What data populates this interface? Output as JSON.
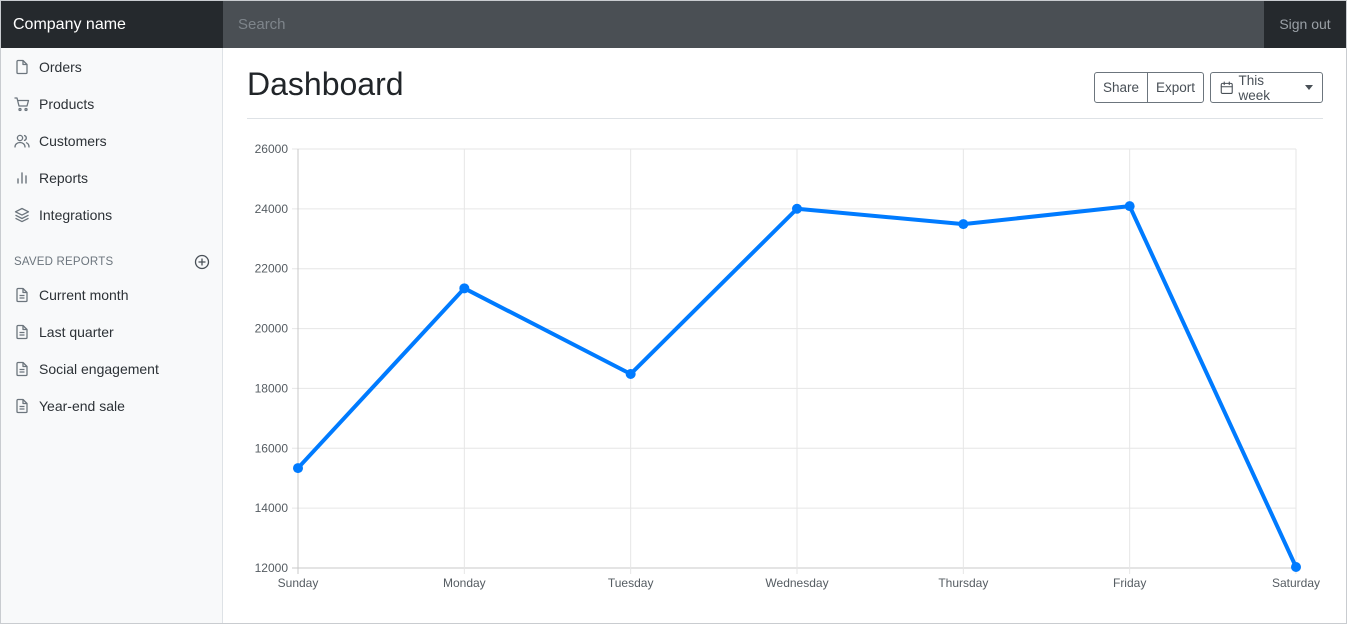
{
  "navbar": {
    "brand": "Company name",
    "search_placeholder": "Search",
    "signout_label": "Sign out"
  },
  "sidebar": {
    "items": [
      {
        "label": "Orders",
        "icon": "file-icon"
      },
      {
        "label": "Products",
        "icon": "cart-icon"
      },
      {
        "label": "Customers",
        "icon": "users-icon"
      },
      {
        "label": "Reports",
        "icon": "bar-chart-icon"
      },
      {
        "label": "Integrations",
        "icon": "layers-icon"
      }
    ],
    "saved_reports_heading": "SAVED REPORTS",
    "saved_reports": [
      {
        "label": "Current month",
        "icon": "file-text-icon"
      },
      {
        "label": "Last quarter",
        "icon": "file-text-icon"
      },
      {
        "label": "Social engagement",
        "icon": "file-text-icon"
      },
      {
        "label": "Year-end sale",
        "icon": "file-text-icon"
      }
    ]
  },
  "main": {
    "title": "Dashboard",
    "share_label": "Share",
    "export_label": "Export",
    "period_label": "This week"
  },
  "colors": {
    "accent": "#007bff",
    "navbar": "#343a40",
    "sidebar": "#f8f9fa"
  },
  "chart_data": {
    "type": "line",
    "categories": [
      "Sunday",
      "Monday",
      "Tuesday",
      "Wednesday",
      "Thursday",
      "Friday",
      "Saturday"
    ],
    "series": [
      {
        "values": [
          15339,
          21345,
          18483,
          24003,
          23489,
          24092,
          12034
        ]
      }
    ],
    "ylim": [
      12000,
      26000
    ],
    "yticks": [
      12000,
      14000,
      16000,
      18000,
      20000,
      22000,
      24000,
      26000
    ],
    "grid": true,
    "legend": "none"
  }
}
